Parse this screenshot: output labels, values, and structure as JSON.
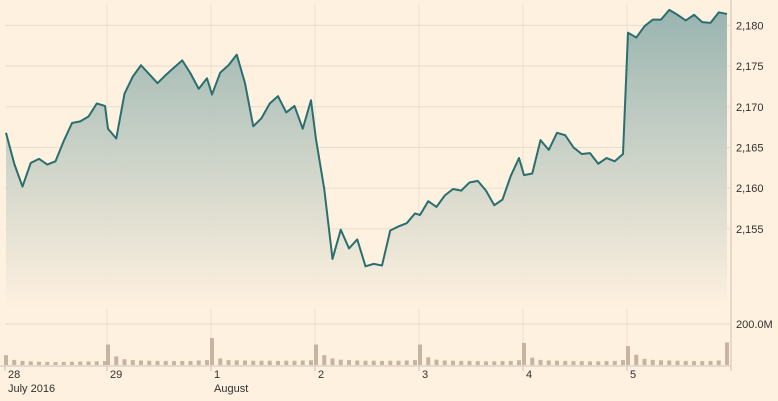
{
  "chart_data": [
    {
      "type": "area",
      "title": "",
      "xlabel": "",
      "ylabel": "",
      "ylim": [
        2147,
        2182.5
      ],
      "grid": true,
      "line_color": "#2a6f6f",
      "fill_color_top": "#93b1ad",
      "fill_color_bottom": "#fff1e0",
      "ytick_values": [
        2155,
        2160,
        2165,
        2170,
        2175,
        2180
      ],
      "ytick_labels": [
        "2,155",
        "2,160",
        "2,165",
        "2,170",
        "2,175",
        "2,180"
      ],
      "xtick_labels": [
        "28",
        "29",
        "1",
        "2",
        "3",
        "4",
        "5"
      ],
      "xtick_sublabels": [
        "July 2016",
        "",
        "August",
        "",
        "",
        "",
        ""
      ],
      "session_days": [
        "28",
        "29",
        "1",
        "2",
        "3",
        "4",
        "5"
      ],
      "points_per_session": 13,
      "series": [
        {
          "values": [
            2166.8,
            2163.0,
            2160.2,
            2163.1,
            2163.6,
            2162.9,
            2163.3,
            2165.8,
            2168.0,
            2168.2,
            2168.8,
            2170.4,
            2170.1,
            2167.3,
            2166.1,
            2171.6,
            2173.7,
            2175.1,
            2174.0,
            2172.9,
            2173.9,
            2174.8,
            2175.7,
            2174.1,
            2172.2,
            2173.5,
            2171.5,
            2174.2,
            2175.1,
            2176.4,
            2172.9,
            2167.6,
            2168.6,
            2170.4,
            2171.3,
            2169.3,
            2170.1,
            2167.3,
            2170.8,
            2166.0,
            2159.9,
            2151.3,
            2154.9,
            2152.6,
            2153.7,
            2150.4,
            2150.7,
            2150.5,
            2154.8,
            2155.3,
            2155.7,
            2156.9,
            2156.7,
            2158.4,
            2157.7,
            2159.1,
            2159.9,
            2159.7,
            2160.7,
            2160.9,
            2159.7,
            2157.9,
            2158.6,
            2161.5,
            2163.7,
            2161.6,
            2161.8,
            2165.9,
            2164.7,
            2166.8,
            2166.5,
            2165.0,
            2164.2,
            2164.3,
            2163.0,
            2163.7,
            2163.3,
            2164.2,
            2179.1,
            2178.5,
            2179.9,
            2180.7,
            2180.7,
            2181.9,
            2181.3,
            2180.6,
            2181.3,
            2180.4,
            2180.3,
            2181.6,
            2181.4
          ]
        }
      ]
    },
    {
      "type": "bar",
      "title": "",
      "xlabel": "",
      "ylabel": "",
      "ylim": [
        0,
        200000000
      ],
      "ytick_values": [
        200000000
      ],
      "ytick_labels": [
        "200.0M"
      ],
      "bar_color": "#c8b2a0",
      "series": [
        {
          "values": [
            48000000,
            25000000,
            20000000,
            18000000,
            16000000,
            15000000,
            14000000,
            15000000,
            16000000,
            17000000,
            17000000,
            18000000,
            19000000,
            100000000,
            42000000,
            28000000,
            24000000,
            22000000,
            21000000,
            20000000,
            20000000,
            19000000,
            20000000,
            20000000,
            22000000,
            24000000,
            132000000,
            32000000,
            24000000,
            23000000,
            22000000,
            21000000,
            21000000,
            21000000,
            20000000,
            21000000,
            21000000,
            22000000,
            23000000,
            100000000,
            48000000,
            32000000,
            26000000,
            24000000,
            22000000,
            21000000,
            21000000,
            20000000,
            21000000,
            21000000,
            22000000,
            24000000,
            100000000,
            38000000,
            26000000,
            22000000,
            21000000,
            20000000,
            20000000,
            19000000,
            18000000,
            18000000,
            19000000,
            20000000,
            23000000,
            108000000,
            36000000,
            25000000,
            22000000,
            21000000,
            20000000,
            19000000,
            19000000,
            18000000,
            18000000,
            19000000,
            20000000,
            24000000,
            92000000,
            50000000,
            30000000,
            25000000,
            23000000,
            22000000,
            21000000,
            20000000,
            19000000,
            19000000,
            20000000,
            22000000,
            110000000
          ]
        }
      ]
    }
  ]
}
